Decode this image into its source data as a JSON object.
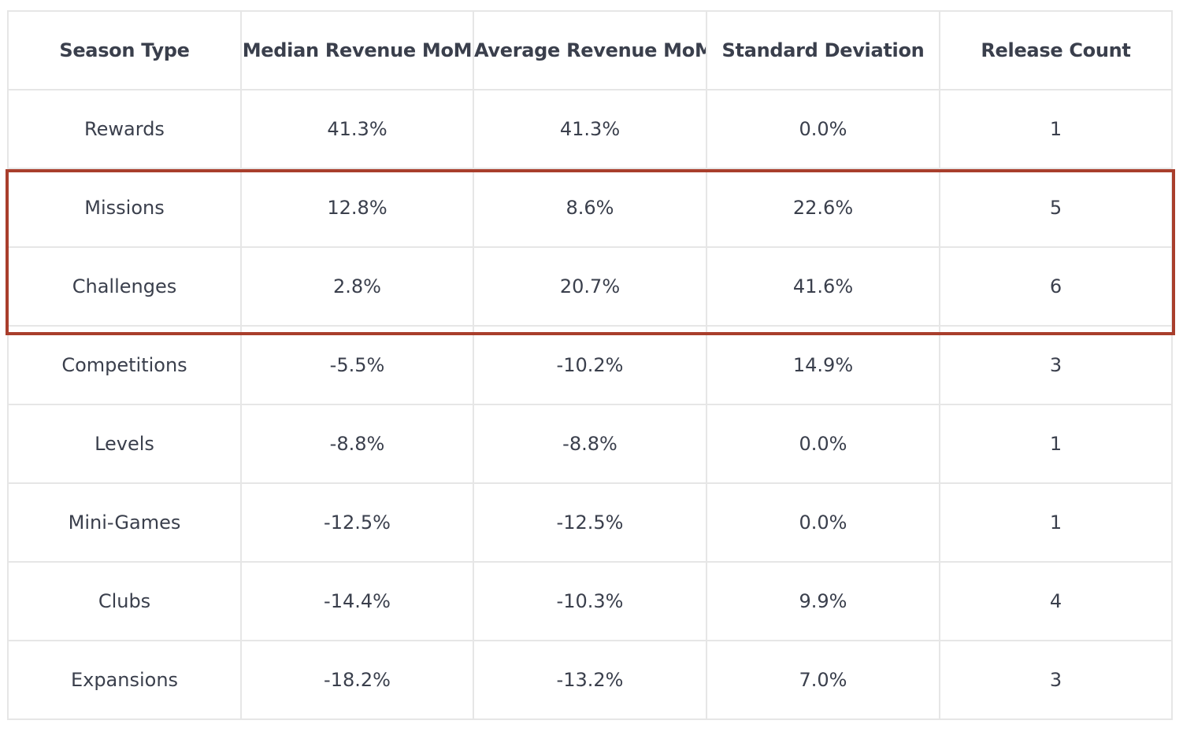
{
  "colors": {
    "text": "#3a3f4c",
    "grid": "#e6e6e6",
    "highlight": "#a93e2c",
    "background": "#ffffff"
  },
  "highlighted_rows": [
    "Missions",
    "Challenges"
  ],
  "chart_data": {
    "type": "table",
    "columns": [
      "Season Type",
      "Median Revenue MoM",
      "Average Revenue MoM",
      "Standard Deviation",
      "Release Count"
    ],
    "rows": [
      [
        "Rewards",
        "41.3%",
        "41.3%",
        "0.0%",
        "1"
      ],
      [
        "Missions",
        "12.8%",
        "8.6%",
        "22.6%",
        "5"
      ],
      [
        "Challenges",
        "2.8%",
        "20.7%",
        "41.6%",
        "6"
      ],
      [
        "Competitions",
        "-5.5%",
        "-10.2%",
        "14.9%",
        "3"
      ],
      [
        "Levels",
        "-8.8%",
        "-8.8%",
        "0.0%",
        "1"
      ],
      [
        "Mini-Games",
        "-12.5%",
        "-12.5%",
        "0.0%",
        "1"
      ],
      [
        "Clubs",
        "-14.4%",
        "-10.3%",
        "9.9%",
        "4"
      ],
      [
        "Expansions",
        "-18.2%",
        "-13.2%",
        "7.0%",
        "3"
      ]
    ]
  }
}
